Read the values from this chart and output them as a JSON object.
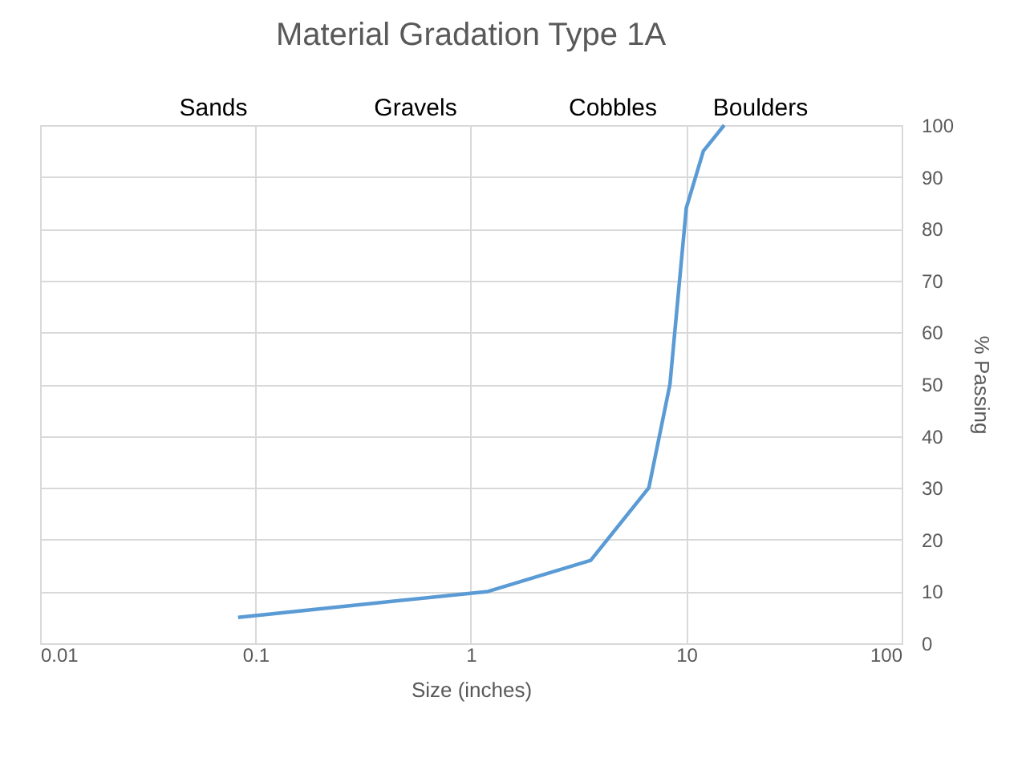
{
  "chart_data": {
    "type": "line",
    "title": "Material Gradation Type 1A",
    "xlabel": "Size (inches)",
    "y2label": "% Passing",
    "x": [
      0.083,
      1.2,
      3.6,
      6.7,
      8.4,
      10,
      12,
      15
    ],
    "series": [
      {
        "color": "#5b9bd5",
        "axis": "y2",
        "values": [
          5,
          10,
          16,
          30,
          50,
          84,
          95,
          100
        ]
      }
    ],
    "log": "x",
    "xlim": [
      0.01,
      100
    ],
    "xticks": [
      0.01,
      0.1,
      1,
      10,
      100
    ],
    "y2lim": [
      0,
      100
    ],
    "y2ticks": [
      0,
      10,
      20,
      30,
      40,
      50,
      60,
      70,
      80,
      90,
      100
    ],
    "grid": true,
    "legend": false,
    "marker": "none",
    "line_style": "solid",
    "annotations": [
      "Sands",
      "Gravels",
      "Cobbles",
      "Boulders"
    ]
  }
}
